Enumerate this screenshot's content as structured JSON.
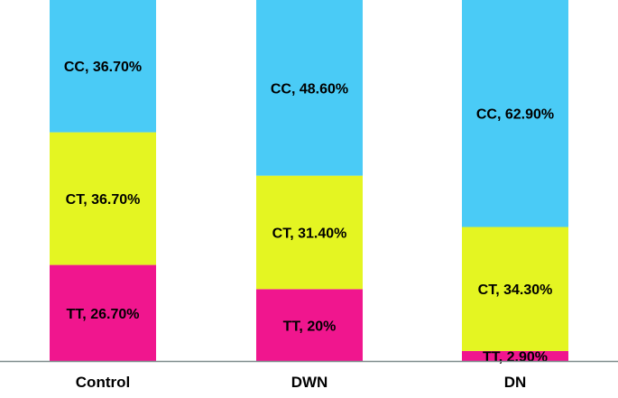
{
  "chart_data": {
    "type": "bar",
    "stacked": true,
    "categories": [
      "Control",
      "DWN",
      "DN"
    ],
    "series": [
      {
        "name": "TT",
        "values": [
          26.7,
          20,
          2.9
        ],
        "labels": [
          "TT, 26.70%",
          "TT, 20%",
          "TT, 2.90%"
        ],
        "color": "#F0168E"
      },
      {
        "name": "CT",
        "values": [
          36.7,
          31.4,
          34.3
        ],
        "labels": [
          "CT, 36.70%",
          "CT, 31.40%",
          "CT, 34.30%"
        ],
        "color": "#E4F522"
      },
      {
        "name": "CC",
        "values": [
          36.7,
          48.6,
          62.9
        ],
        "labels": [
          "CC, 36.70%",
          "CC, 48.60%",
          "CC, 62.90%"
        ],
        "color": "#4ACBF6"
      }
    ],
    "ylim": [
      0,
      100
    ],
    "axis_color": "#7F8C8D",
    "grid": false,
    "legend": "none"
  }
}
